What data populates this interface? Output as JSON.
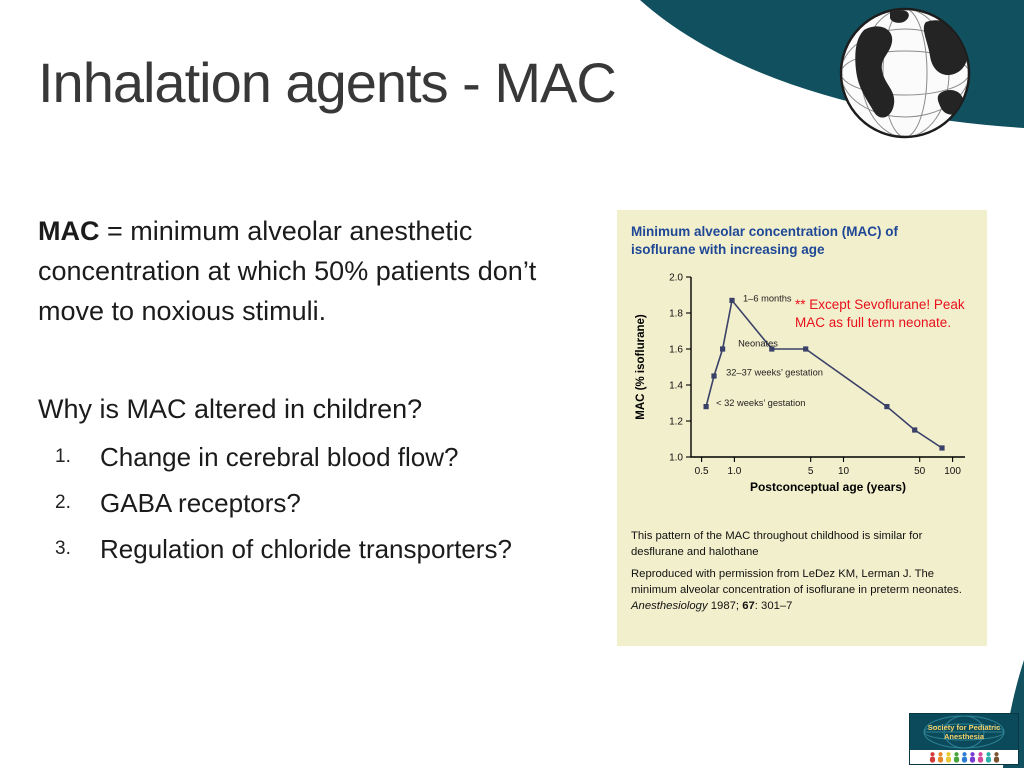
{
  "slide": {
    "title": "Inhalation agents - MAC"
  },
  "content": {
    "definition": {
      "term": "MAC",
      "rest": " = minimum alveolar anesthetic concentration at which 50% patients don’t move to noxious stimuli."
    },
    "question": "Why is MAC altered in children?",
    "list": [
      {
        "num": "1.",
        "text": "Change in cerebral blood flow?"
      },
      {
        "num": "2.",
        "text": "GABA receptors?"
      },
      {
        "num": "3.",
        "text": "Regulation of chloride transporters?"
      }
    ]
  },
  "figure": {
    "title": "Minimum alveolar concentration (MAC) of isoflurane with increasing age",
    "red_note": "** Except Sevoflurane! Peak MAC as full term neonate.",
    "caption_line1": "This pattern of the MAC throughout childhood is similar for desflurane and halothane",
    "caption_line2_pre": "Reproduced with permission from LeDez KM, Lerman J. The minimum alveolar concentration of isoflurane in preterm neonates. ",
    "caption_journal": "Anesthesiology",
    "caption_mid": " 1987; ",
    "caption_volume": "67",
    "caption_end": ": 301–7"
  },
  "chart_data": {
    "type": "line",
    "title": "Minimum alveolar concentration (MAC) of isoflurane with increasing age",
    "xlabel": "Postconceptual age (years)",
    "ylabel": "MAC (% isoflurane)",
    "x_scale": "log",
    "xlim": [
      0.4,
      130
    ],
    "ylim": [
      1.0,
      2.0
    ],
    "grid": false,
    "legend": false,
    "y_ticks": [
      {
        "v": 1.0,
        "label": "1.0"
      },
      {
        "v": 1.2,
        "label": "1.2"
      },
      {
        "v": 1.4,
        "label": "1.4"
      },
      {
        "v": 1.6,
        "label": "1.6"
      },
      {
        "v": 1.8,
        "label": "1.8"
      },
      {
        "v": 2.0,
        "label": "2.0"
      }
    ],
    "x_ticks": [
      {
        "v": 0.5,
        "label": "0.5"
      },
      {
        "v": 1,
        "label": "1.0"
      },
      {
        "v": 5,
        "label": "5"
      },
      {
        "v": 10,
        "label": "10"
      },
      {
        "v": 50,
        "label": "50"
      },
      {
        "v": 100,
        "label": "100"
      }
    ],
    "points": [
      {
        "x": 0.55,
        "y": 1.28
      },
      {
        "x": 0.65,
        "y": 1.45
      },
      {
        "x": 0.78,
        "y": 1.6
      },
      {
        "x": 0.95,
        "y": 1.87
      },
      {
        "x": 2.2,
        "y": 1.6
      },
      {
        "x": 4.5,
        "y": 1.6
      },
      {
        "x": 25,
        "y": 1.28
      },
      {
        "x": 45,
        "y": 1.15
      },
      {
        "x": 80,
        "y": 1.05
      }
    ],
    "annotations": [
      {
        "text": "1–6 months",
        "x": 1.2,
        "y": 1.88
      },
      {
        "text": "Neonates",
        "x": 1.08,
        "y": 1.63
      },
      {
        "text": "32–37 weeks’ gestation",
        "x": 0.84,
        "y": 1.47
      },
      {
        "text": "< 32 weeks’ gestation",
        "x": 0.68,
        "y": 1.3
      }
    ]
  },
  "logo": {
    "text": "Society for Pediatric Anesthesia",
    "figure_colors": [
      "#d43a3a",
      "#e8862a",
      "#e8c832",
      "#4aa43a",
      "#2e7dd4",
      "#7a3ad4",
      "#d44a9a",
      "#2ab0a8",
      "#7a5230"
    ]
  },
  "colors": {
    "teal": "#10505f",
    "figure_bg": "#f2efcc",
    "figure_title": "#1e4796",
    "red_note": "#e8111c",
    "line": "#3a4168"
  }
}
